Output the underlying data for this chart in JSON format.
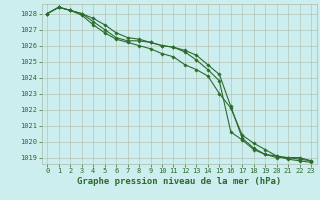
{
  "x": [
    0,
    1,
    2,
    3,
    4,
    5,
    6,
    7,
    8,
    9,
    10,
    11,
    12,
    13,
    14,
    15,
    16,
    17,
    18,
    19,
    20,
    21,
    22,
    23
  ],
  "line1": [
    1028.0,
    1028.4,
    1028.2,
    1028.0,
    1027.7,
    1027.3,
    1026.8,
    1026.5,
    1026.4,
    1026.2,
    1026.0,
    1025.9,
    1025.7,
    1025.4,
    1024.8,
    1024.2,
    1022.2,
    1020.2,
    1019.6,
    1019.2,
    1019.1,
    1019.0,
    1018.9,
    1018.8
  ],
  "line2": [
    1028.0,
    1028.4,
    1028.2,
    1027.9,
    1027.3,
    1026.8,
    1026.4,
    1026.2,
    1026.0,
    1025.8,
    1025.5,
    1025.3,
    1024.8,
    1024.5,
    1024.1,
    1023.0,
    1022.1,
    1020.4,
    1019.9,
    1019.5,
    1019.1,
    1018.9,
    1018.8,
    1018.7
  ],
  "line3": [
    1028.0,
    1028.4,
    1028.2,
    1028.0,
    1027.5,
    1027.0,
    1026.5,
    1026.3,
    1026.3,
    1026.2,
    1026.0,
    1025.9,
    1025.6,
    1025.1,
    1024.5,
    1023.8,
    1020.6,
    1020.1,
    1019.5,
    1019.2,
    1019.0,
    1019.0,
    1019.0,
    1018.8
  ],
  "ylim": [
    1018.6,
    1028.6
  ],
  "yticks": [
    1019,
    1020,
    1021,
    1022,
    1023,
    1024,
    1025,
    1026,
    1027,
    1028
  ],
  "xticks": [
    0,
    1,
    2,
    3,
    4,
    5,
    6,
    7,
    8,
    9,
    10,
    11,
    12,
    13,
    14,
    15,
    16,
    17,
    18,
    19,
    20,
    21,
    22,
    23
  ],
  "xlabel": "Graphe pression niveau de la mer (hPa)",
  "line_color": "#2d6a2d",
  "bg_color": "#cceeee",
  "grid_color": "#aabbaa",
  "marker": "D",
  "markersize": 1.8,
  "linewidth": 0.8,
  "xlabel_fontsize": 6.5,
  "tick_fontsize": 5.0
}
